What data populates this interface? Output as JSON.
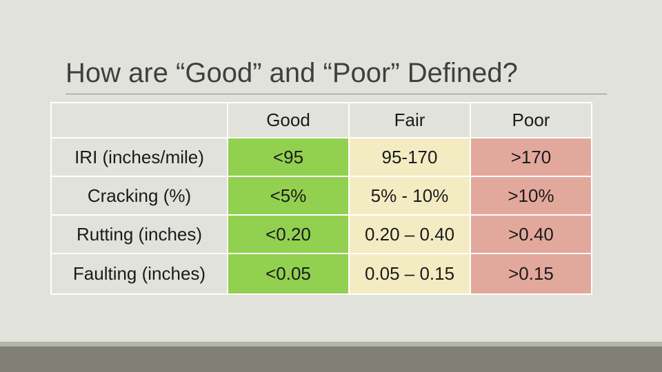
{
  "title": "How are “Good” and “Poor” Defined?",
  "table": {
    "headers": [
      "",
      "Good",
      "Fair",
      "Poor"
    ],
    "rows": [
      {
        "label": "IRI (inches/mile)",
        "good": "<95",
        "fair": "95-170",
        "poor": ">170"
      },
      {
        "label": "Cracking (%)",
        "good": "<5%",
        "fair": "5% - 10%",
        "poor": ">10%"
      },
      {
        "label": "Rutting (inches)",
        "good": "<0.20",
        "fair": "0.20 – 0.40",
        "poor": ">0.40"
      },
      {
        "label": "Faulting (inches)",
        "good": "<0.05",
        "fair": "0.05 – 0.15",
        "poor": ">0.15"
      }
    ]
  },
  "colors": {
    "background": "#e2e2dc",
    "good": "#92d050",
    "fair": "#f3ecc3",
    "poor": "#e3a89c",
    "footer": "#808077"
  }
}
